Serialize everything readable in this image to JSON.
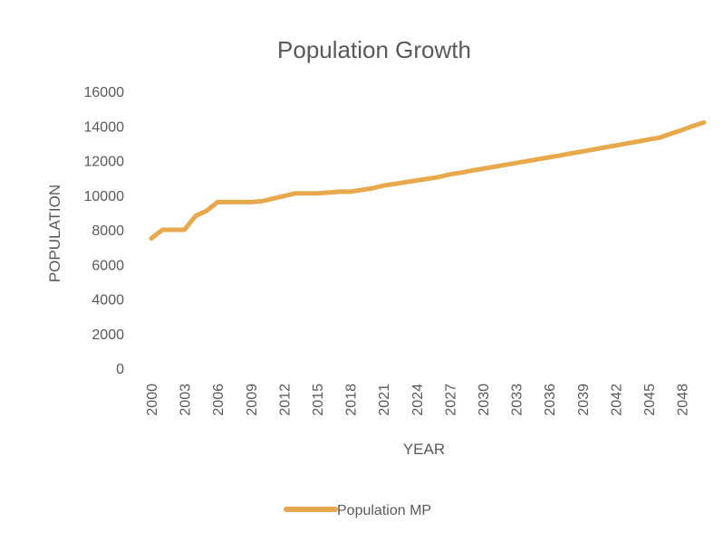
{
  "chart_data": {
    "type": "line",
    "title": "Population Growth",
    "xlabel": "YEAR",
    "ylabel": "POPULATION",
    "ylim": [
      0,
      16000
    ],
    "yticks": [
      0,
      2000,
      4000,
      6000,
      8000,
      10000,
      12000,
      14000,
      16000
    ],
    "xlim": [
      2000,
      2050
    ],
    "xtick_labels": [
      "2000",
      "2003",
      "2006",
      "2009",
      "2012",
      "2015",
      "2018",
      "2021",
      "2024",
      "2027",
      "2030",
      "2033",
      "2036",
      "2039",
      "2042",
      "2045",
      "2048"
    ],
    "grid": false,
    "legend_position": "bottom",
    "series": [
      {
        "name": "Population MP",
        "color": "#E8A84C",
        "segments": [
          {
            "x": [
              2000,
              2001,
              2002,
              2003,
              2004,
              2005,
              2006
            ],
            "y": [
              7500,
              8000,
              8000,
              8000,
              8800,
              9100,
              9600
            ]
          },
          {
            "x": [
              2006,
              2007,
              2008,
              2009,
              2010,
              2011,
              2012,
              2013,
              2014,
              2015,
              2016,
              2017,
              2018,
              2019,
              2020,
              2021,
              2022,
              2023,
              2024,
              2025,
              2026,
              2027,
              2028,
              2029,
              2030,
              2031,
              2032,
              2033,
              2034,
              2035,
              2036,
              2037,
              2038,
              2039,
              2040,
              2041,
              2042,
              2043,
              2044,
              2045,
              2046,
              2047,
              2048,
              2049,
              2050
            ],
            "y": [
              9600,
              9600,
              9600,
              9600,
              9650,
              9800,
              9950,
              10100,
              10100,
              10100,
              10150,
              10200,
              10200,
              10300,
              10400,
              10550,
              10650,
              10750,
              10850,
              10950,
              11050,
              11200,
              11300,
              11420,
              11530,
              11640,
              11750,
              11860,
              11970,
              12080,
              12190,
              12300,
              12420,
              12530,
              12640,
              12760,
              12870,
              12990,
              13100,
              13220,
              13330,
              13550,
              13760,
              14000,
              14200
            ]
          }
        ]
      }
    ]
  }
}
